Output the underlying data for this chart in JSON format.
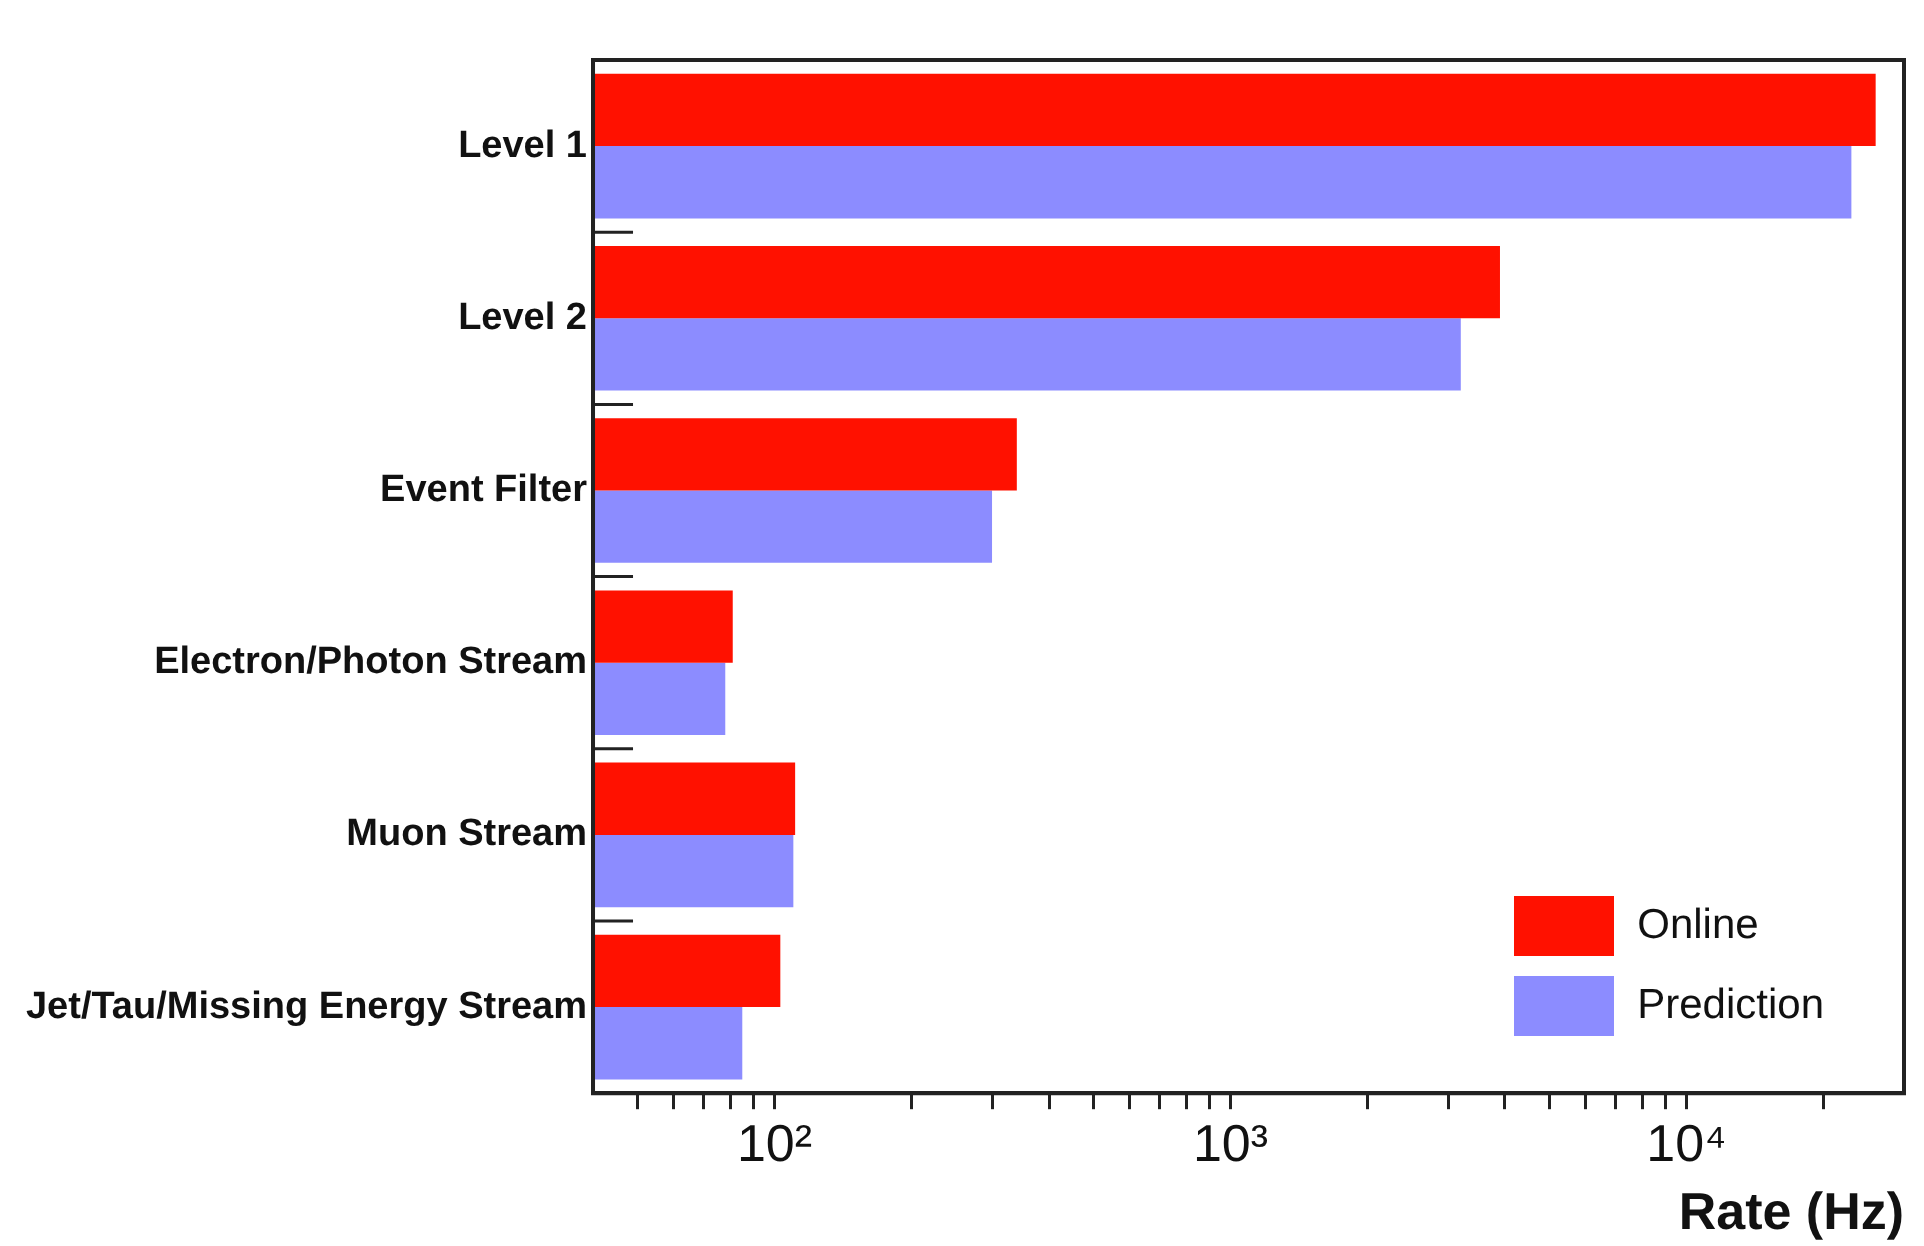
{
  "chart_data": {
    "type": "bar",
    "orientation": "horizontal",
    "log": "x",
    "xlabel": "Rate (Hz)",
    "categories": [
      "Level 1",
      "Level 2",
      "Event Filter",
      "Electron/Photon Stream",
      "Muon Stream",
      "Jet/Tau/Missing Energy Stream"
    ],
    "series": [
      {
        "name": "Online",
        "color": "#ff1100",
        "values": [
          26000,
          3900,
          340,
          81,
          111,
          103
        ]
      },
      {
        "name": "Prediction",
        "color": "#8c8cff",
        "values": [
          23000,
          3200,
          300,
          78,
          110,
          85
        ]
      }
    ],
    "xlim": [
      40,
      30000
    ],
    "xticks": [
      {
        "value": 50,
        "label": null
      },
      {
        "value": 60,
        "label": null
      },
      {
        "value": 70,
        "label": null
      },
      {
        "value": 80,
        "label": null
      },
      {
        "value": 90,
        "label": null
      },
      {
        "value": 100,
        "label": "10²"
      },
      {
        "value": 200,
        "label": null
      },
      {
        "value": 300,
        "label": null
      },
      {
        "value": 400,
        "label": null
      },
      {
        "value": 500,
        "label": null
      },
      {
        "value": 600,
        "label": null
      },
      {
        "value": 700,
        "label": null
      },
      {
        "value": 800,
        "label": null
      },
      {
        "value": 900,
        "label": null
      },
      {
        "value": 1000,
        "label": "10³"
      },
      {
        "value": 2000,
        "label": null
      },
      {
        "value": 3000,
        "label": null
      },
      {
        "value": 4000,
        "label": null
      },
      {
        "value": 5000,
        "label": null
      },
      {
        "value": 6000,
        "label": null
      },
      {
        "value": 7000,
        "label": null
      },
      {
        "value": 8000,
        "label": null
      },
      {
        "value": 9000,
        "label": null
      },
      {
        "value": 10000,
        "label": "10⁴"
      },
      {
        "value": 20000,
        "label": null
      }
    ],
    "grid": false,
    "legend": "bottom right"
  }
}
